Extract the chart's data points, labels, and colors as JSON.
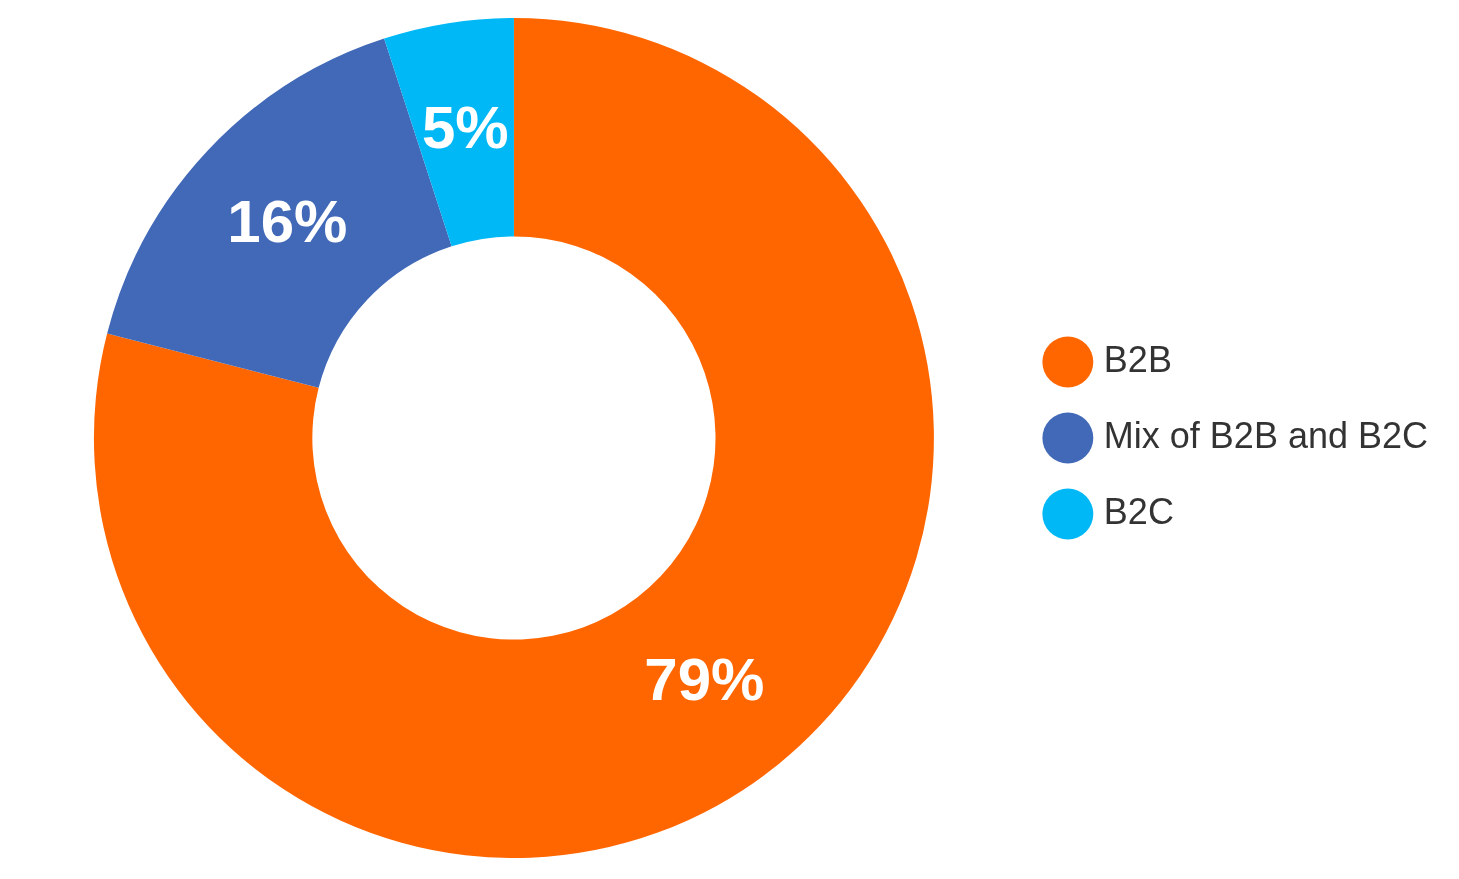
{
  "chart_data": {
    "type": "donut",
    "categories": [
      "B2B",
      "Mix of B2B and B2C",
      "B2C"
    ],
    "values": [
      79,
      16,
      5
    ],
    "colors": [
      "#ff6600",
      "#4169b8",
      "#00b8f5"
    ],
    "value_labels": [
      "79%",
      "16%",
      "5%"
    ],
    "legend": "right"
  }
}
